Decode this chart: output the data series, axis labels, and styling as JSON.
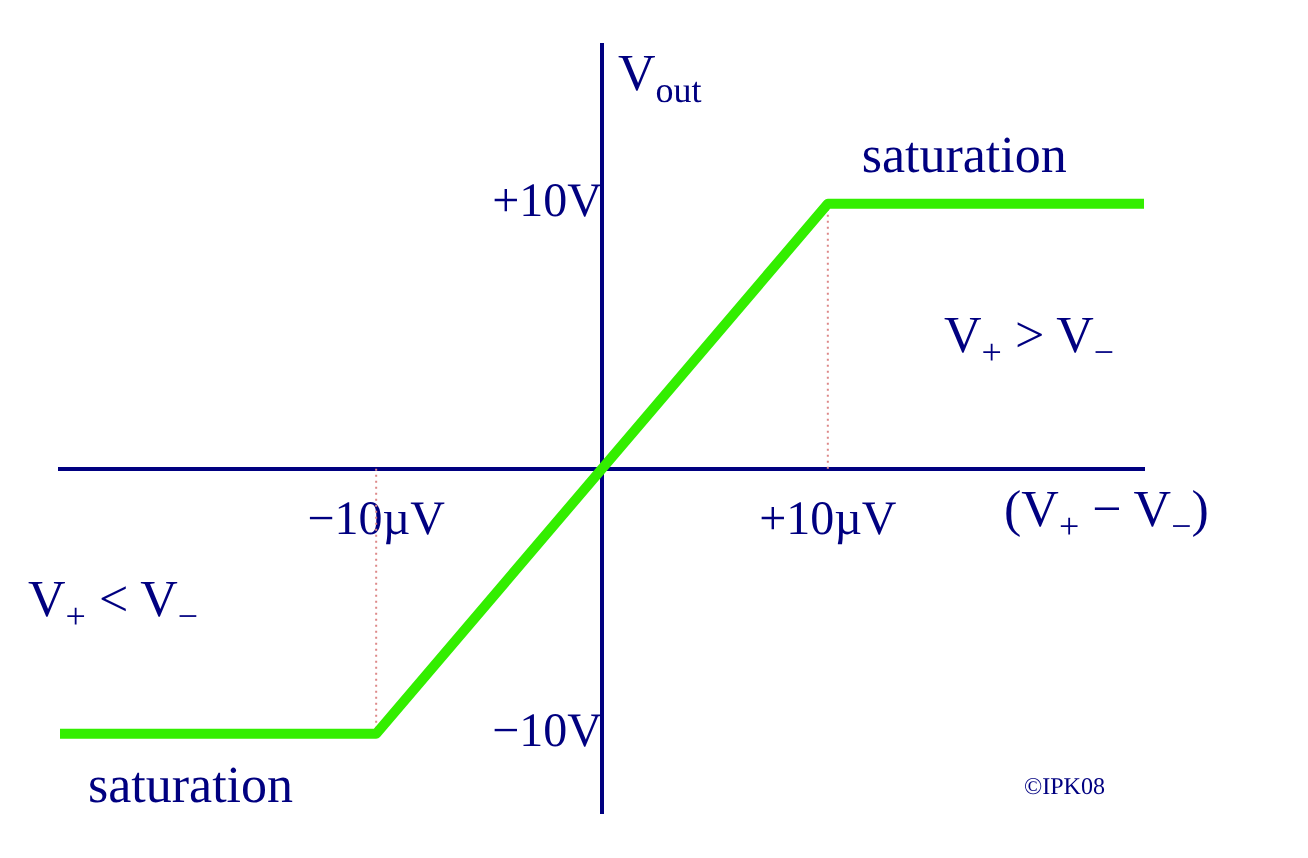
{
  "chart_data": {
    "type": "line",
    "x": [
      -24,
      -10,
      10,
      24
    ],
    "values": [
      -10,
      -10,
      10,
      10
    ],
    "color": "#33ee00",
    "xlim": [
      -24,
      24
    ],
    "ylim": [
      -13,
      16
    ],
    "xticks": [
      {
        "value": -10,
        "label": "−10µV"
      },
      {
        "value": 10,
        "label": "+10µV"
      }
    ],
    "yticks": [
      {
        "value": -10,
        "label": "−10V"
      },
      {
        "value": 10,
        "label": "+10V"
      }
    ],
    "xlabel": "(V$_{+}$ − V$_{−}$)",
    "ylabel": "V$_{out}$",
    "ref_lines": [
      {
        "axis": "x",
        "value": -10,
        "color": "#dd8888",
        "line_style": "dotted"
      },
      {
        "axis": "x",
        "value": 10,
        "color": "#dd8888",
        "line_style": "dotted"
      }
    ],
    "annotations": [
      "saturation",
      "saturation",
      "V$_{+}$ > V$_{−}$",
      "V$_{+}$ < V$_{−}$",
      "©IPK08"
    ],
    "grid": false,
    "legend": false,
    "marker": "none"
  }
}
